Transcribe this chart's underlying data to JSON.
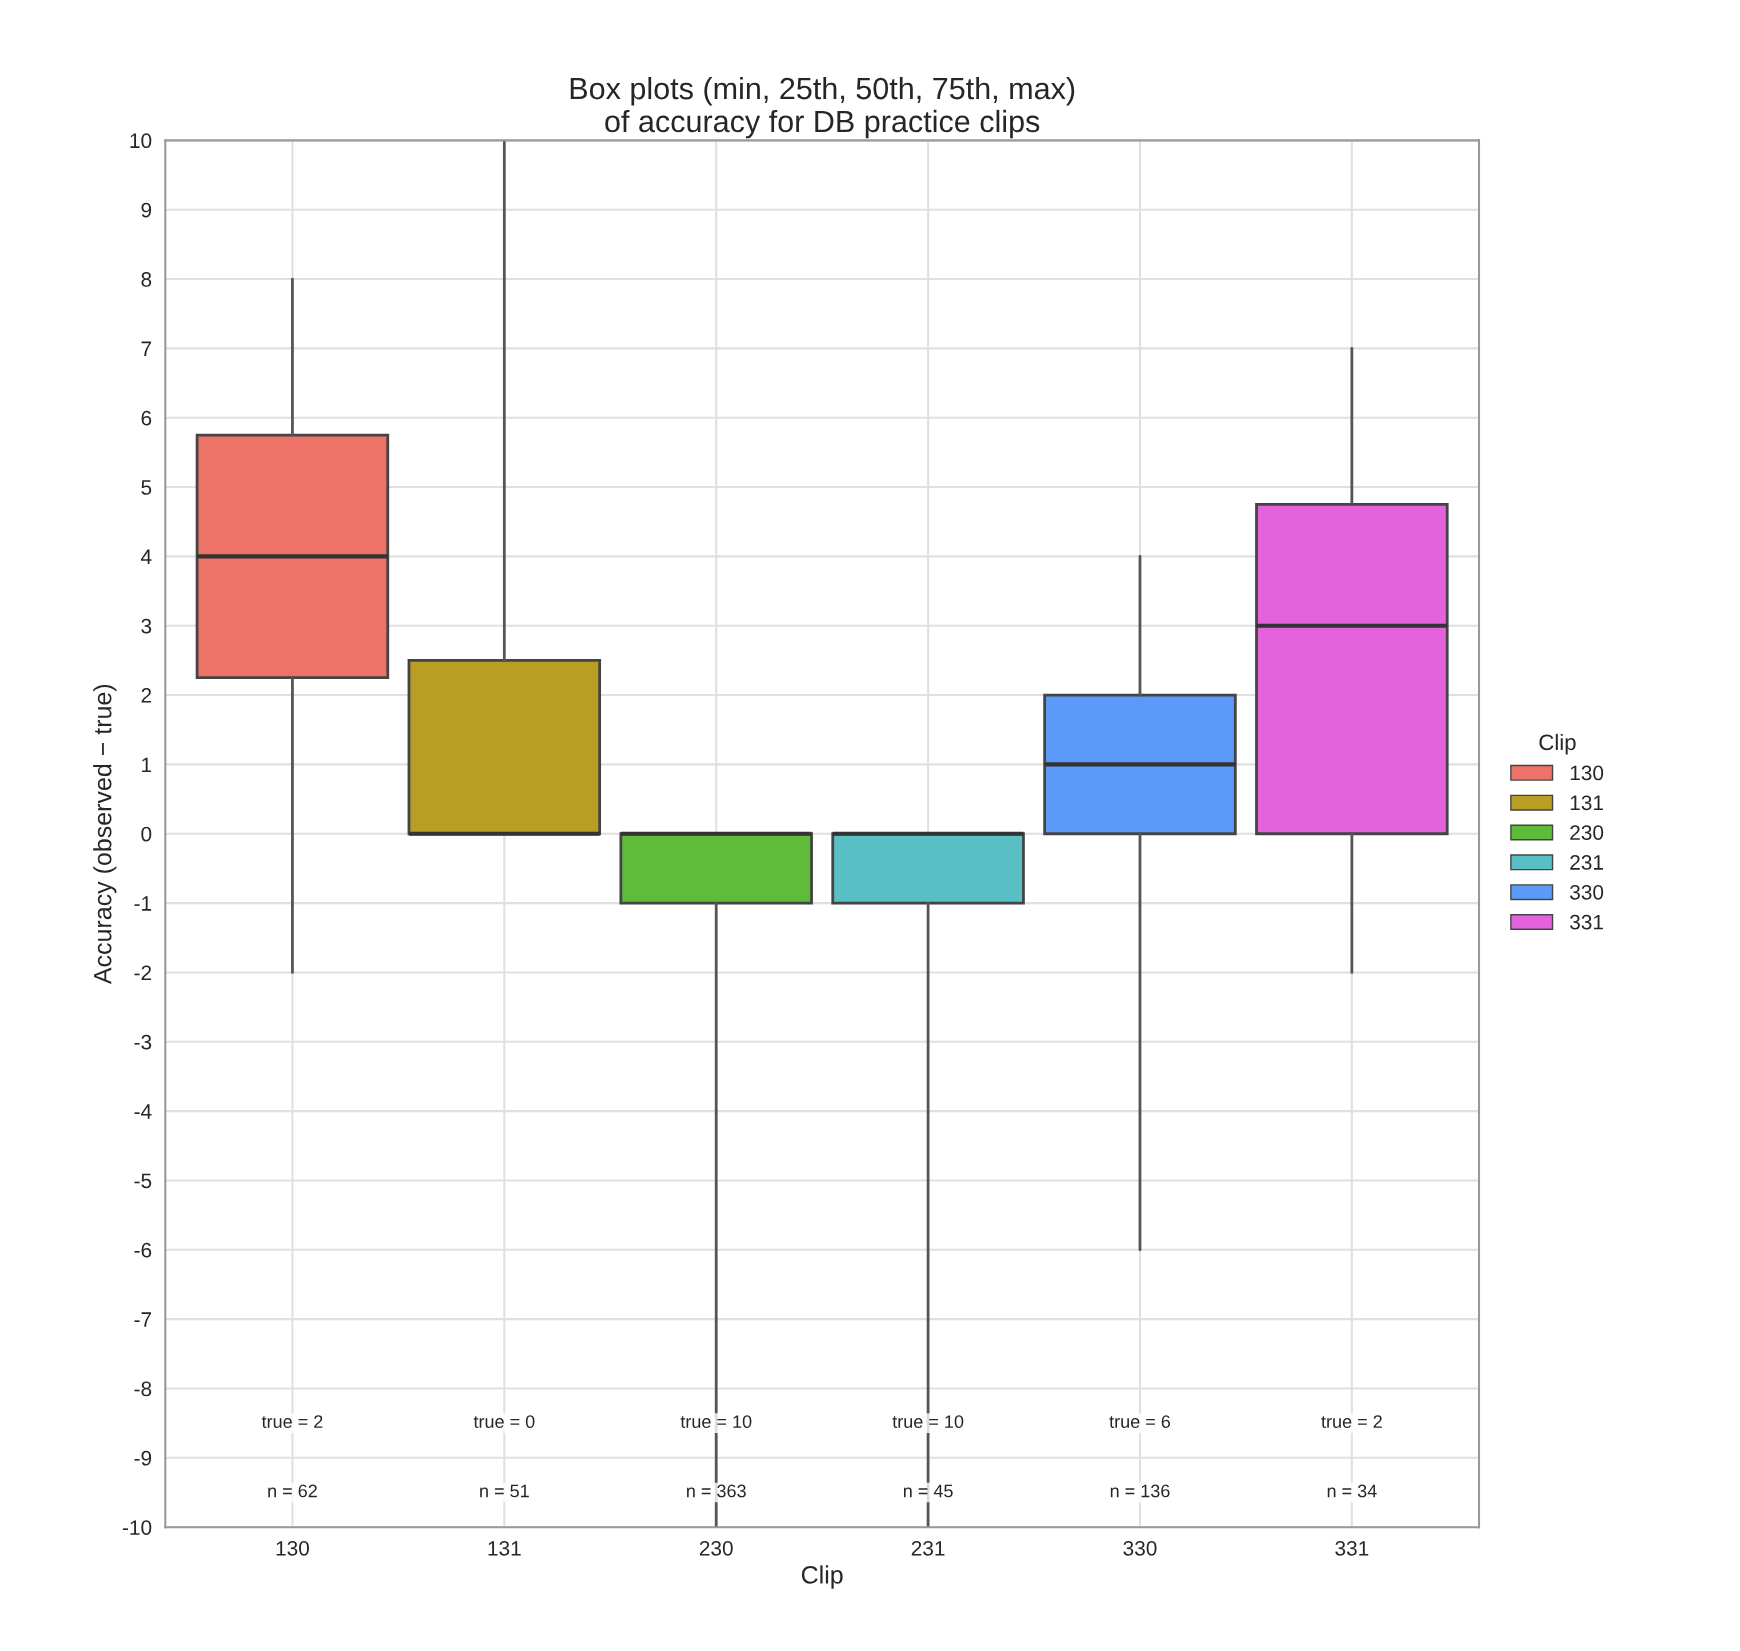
{
  "chart_data": {
    "type": "box",
    "title": "Box plots (min, 25th, 50th, 75th, max)\nof accuracy for DB practice clips",
    "xlabel": "Clip",
    "ylabel": "Accuracy (observed − true)",
    "legend_title": "Clip",
    "legend": "right",
    "grid": true,
    "categories": [
      "130",
      "131",
      "230",
      "231",
      "330",
      "331"
    ],
    "series": [
      {
        "name": "130",
        "color": "#ed7369",
        "boxes": [
          {
            "low": -2,
            "q1": 2.25,
            "median": 4,
            "q3": 5.75,
            "high": 8
          },
          null,
          null,
          null,
          null,
          null
        ]
      },
      {
        "name": "131",
        "color": "#b89e25",
        "boxes": [
          null,
          {
            "low": 0,
            "q1": 0,
            "median": 0,
            "q3": 2.5,
            "high": 10
          },
          null,
          null,
          null,
          null
        ]
      },
      {
        "name": "230",
        "color": "#5fbb3a",
        "boxes": [
          null,
          null,
          {
            "low": -10,
            "q1": -1,
            "median": 0,
            "q3": 0,
            "high": 0
          },
          null,
          null,
          null
        ]
      },
      {
        "name": "231",
        "color": "#58bfc5",
        "boxes": [
          null,
          null,
          null,
          {
            "low": -10,
            "q1": -1,
            "median": 0,
            "q3": 0,
            "high": 0
          },
          null,
          null
        ]
      },
      {
        "name": "330",
        "color": "#5c9af9",
        "boxes": [
          null,
          null,
          null,
          null,
          {
            "low": -6,
            "q1": 0,
            "median": 1,
            "q3": 2,
            "high": 4
          },
          null
        ]
      },
      {
        "name": "331",
        "color": "#e462dc",
        "boxes": [
          null,
          null,
          null,
          null,
          null,
          {
            "low": -2,
            "q1": 0,
            "median": 3,
            "q3": 4.75,
            "high": 7
          }
        ]
      }
    ],
    "ylim": [
      -10,
      10
    ],
    "yticks": [
      -10,
      -9,
      -8,
      -7,
      -6,
      -5,
      -4,
      -3,
      -2,
      -1,
      0,
      1,
      2,
      3,
      4,
      5,
      6,
      7,
      8,
      9,
      10
    ],
    "annotations": [
      "true = 2",
      "true = 0",
      "true = 10",
      "true = 10",
      "true = 6",
      "true = 2",
      "n = 62",
      "n = 51",
      "n = 363",
      "n = 45",
      "n = 136",
      "n = 34"
    ]
  }
}
